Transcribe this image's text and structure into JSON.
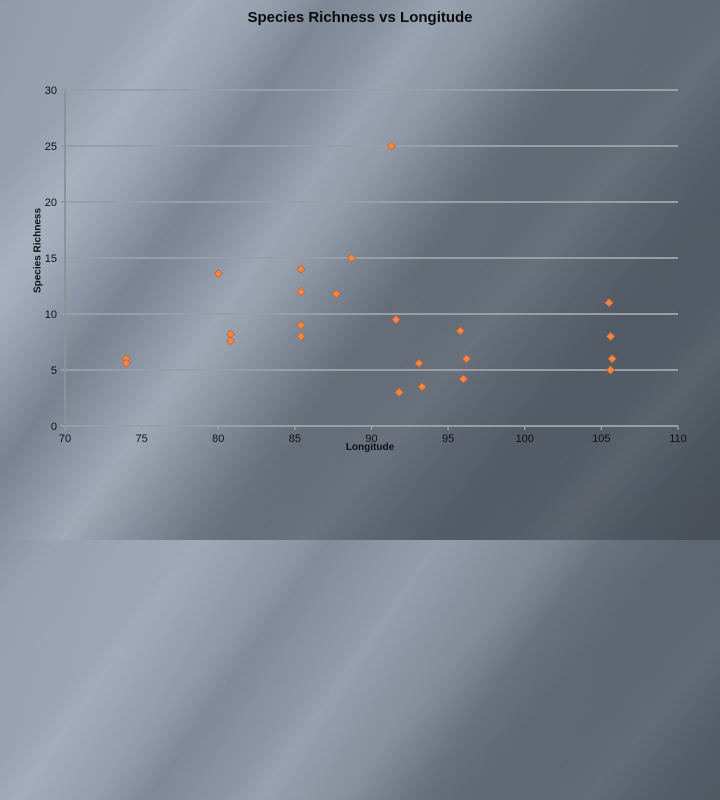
{
  "chart_data": {
    "type": "scatter",
    "title": "Species Richness vs Longitude",
    "xlabel": "Longitude",
    "ylabel": "Species Richness",
    "xlim": [
      70,
      110
    ],
    "ylim": [
      0,
      30
    ],
    "xticks": [
      70,
      75,
      80,
      85,
      90,
      95,
      100,
      105,
      110
    ],
    "yticks": [
      0,
      5,
      10,
      15,
      20,
      25,
      30
    ],
    "grid": "horizontal",
    "legend": null,
    "marker": "diamond",
    "color": "#f0884a",
    "series": [
      {
        "name": "Species Richness",
        "points": [
          {
            "x": 74.0,
            "y": 6.0
          },
          {
            "x": 74.0,
            "y": 5.6
          },
          {
            "x": 80.0,
            "y": 13.6
          },
          {
            "x": 80.8,
            "y": 8.2
          },
          {
            "x": 80.8,
            "y": 7.6
          },
          {
            "x": 85.4,
            "y": 14.0
          },
          {
            "x": 85.4,
            "y": 12.0
          },
          {
            "x": 85.4,
            "y": 9.0
          },
          {
            "x": 85.4,
            "y": 8.0
          },
          {
            "x": 87.7,
            "y": 11.8
          },
          {
            "x": 88.7,
            "y": 15.0
          },
          {
            "x": 91.3,
            "y": 25.0
          },
          {
            "x": 91.6,
            "y": 9.5
          },
          {
            "x": 91.8,
            "y": 3.0
          },
          {
            "x": 93.1,
            "y": 5.6
          },
          {
            "x": 93.3,
            "y": 3.5
          },
          {
            "x": 95.8,
            "y": 8.5
          },
          {
            "x": 96.0,
            "y": 4.2
          },
          {
            "x": 96.2,
            "y": 6.0
          },
          {
            "x": 105.5,
            "y": 11.0
          },
          {
            "x": 105.6,
            "y": 8.0
          },
          {
            "x": 105.7,
            "y": 6.0
          },
          {
            "x": 105.6,
            "y": 5.0
          }
        ]
      }
    ]
  }
}
